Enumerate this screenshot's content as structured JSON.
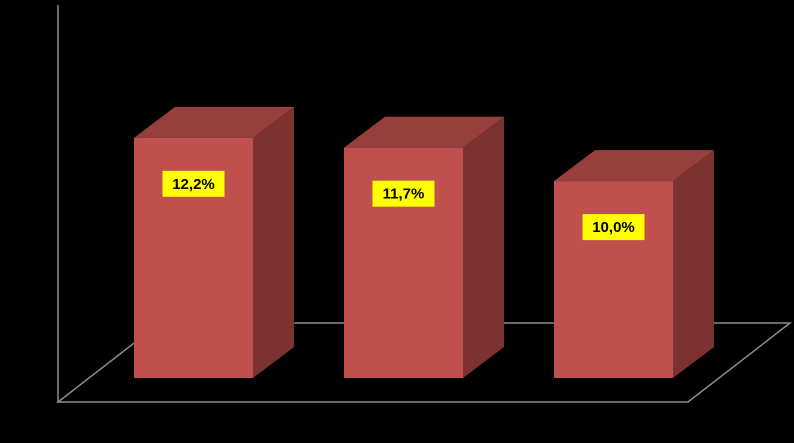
{
  "chart_data": {
    "type": "bar3d",
    "categories": [
      null,
      null,
      null
    ],
    "values": [
      12.2,
      11.7,
      10.0
    ],
    "value_labels": [
      "12,2%",
      "11,7%",
      "10,0%"
    ],
    "color": "#c0504d",
    "ylim": [
      0,
      16
    ]
  }
}
